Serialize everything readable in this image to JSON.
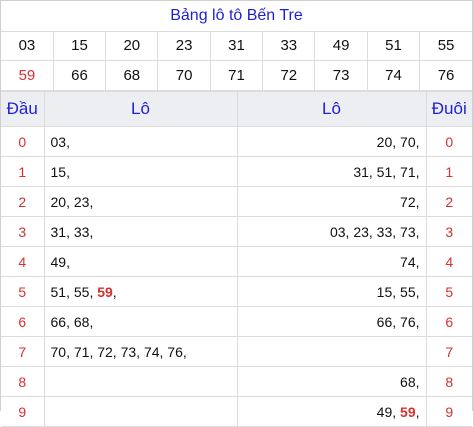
{
  "title": "Bảng lô tô Bến Tre",
  "numbers_row1": [
    "03",
    "15",
    "20",
    "23",
    "31",
    "33",
    "49",
    "51",
    "55"
  ],
  "numbers_row2": [
    "59",
    "66",
    "68",
    "70",
    "71",
    "72",
    "73",
    "74",
    "76"
  ],
  "headers": {
    "dau": "Đầu",
    "lo_left": "Lô",
    "lo_right": "Lô",
    "duoi": "Đuôi"
  },
  "rows": [
    {
      "dau": "0",
      "left": [
        "03"
      ],
      "right": [
        "20",
        "70"
      ],
      "duoi": "0"
    },
    {
      "dau": "1",
      "left": [
        "15"
      ],
      "right": [
        "31",
        "51",
        "71"
      ],
      "duoi": "1"
    },
    {
      "dau": "2",
      "left": [
        "20",
        "23"
      ],
      "right": [
        "72"
      ],
      "duoi": "2"
    },
    {
      "dau": "3",
      "left": [
        "31",
        "33"
      ],
      "right": [
        "03",
        "23",
        "33",
        "73"
      ],
      "duoi": "3"
    },
    {
      "dau": "4",
      "left": [
        "49"
      ],
      "right": [
        "74"
      ],
      "duoi": "4"
    },
    {
      "dau": "5",
      "left": [
        "51",
        "55",
        "59"
      ],
      "right": [
        "15",
        "55"
      ],
      "duoi": "5"
    },
    {
      "dau": "6",
      "left": [
        "66",
        "68"
      ],
      "right": [
        "66",
        "76"
      ],
      "duoi": "6"
    },
    {
      "dau": "7",
      "left": [
        "70",
        "71",
        "72",
        "73",
        "74",
        "76"
      ],
      "right": [],
      "duoi": "7"
    },
    {
      "dau": "8",
      "left": [],
      "right": [
        "68"
      ],
      "duoi": "8"
    },
    {
      "dau": "9",
      "left": [],
      "right": [
        "49",
        "59"
      ],
      "duoi": "9"
    }
  ],
  "highlight": "59",
  "colors": {
    "title_blue": "#1f1fd4",
    "accent_red": "#d63030",
    "header_bg": "#eceef1"
  }
}
